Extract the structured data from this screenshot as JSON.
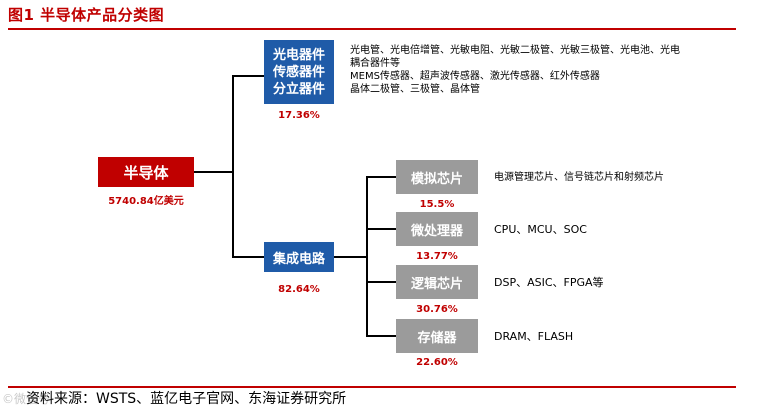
{
  "figure_title": "图1  半导体产品分类图",
  "root": {
    "label": "半导体",
    "value": "5740.84亿美元"
  },
  "opto": {
    "label_lines": [
      "光电器件",
      "传感器件",
      "分立器件"
    ],
    "pct": "17.36%",
    "desc_lines": [
      "光电管、光电倍增管、光敏电阻、光敏二极管、光敏三极管、光电池、光电",
      "耦合器件等",
      "MEMS传感器、超声波传感器、激光传感器、红外传感器",
      "晶体二极管、三极管、晶体管"
    ]
  },
  "ic": {
    "label": "集成电路",
    "pct": "82.64%",
    "children": [
      {
        "label": "模拟芯片",
        "pct": "15.5%",
        "desc": "电源管理芯片、信号链芯片和射频芯片"
      },
      {
        "label": "微处理器",
        "pct": "13.77%",
        "desc": "CPU、MCU、SOC"
      },
      {
        "label": "逻辑芯片",
        "pct": "30.76%",
        "desc": "DSP、ASIC、FPGA等"
      },
      {
        "label": "存储器",
        "pct": "22.60%",
        "desc": "DRAM、FLASH"
      }
    ]
  },
  "source": "资料来源：WSTS、蓝亿电子官网、东海证券研究所",
  "watermark": "©微信号",
  "colors": {
    "accent_red": "#c00000",
    "blue": "#1f5ba8",
    "gray": "#9b9b9b"
  }
}
